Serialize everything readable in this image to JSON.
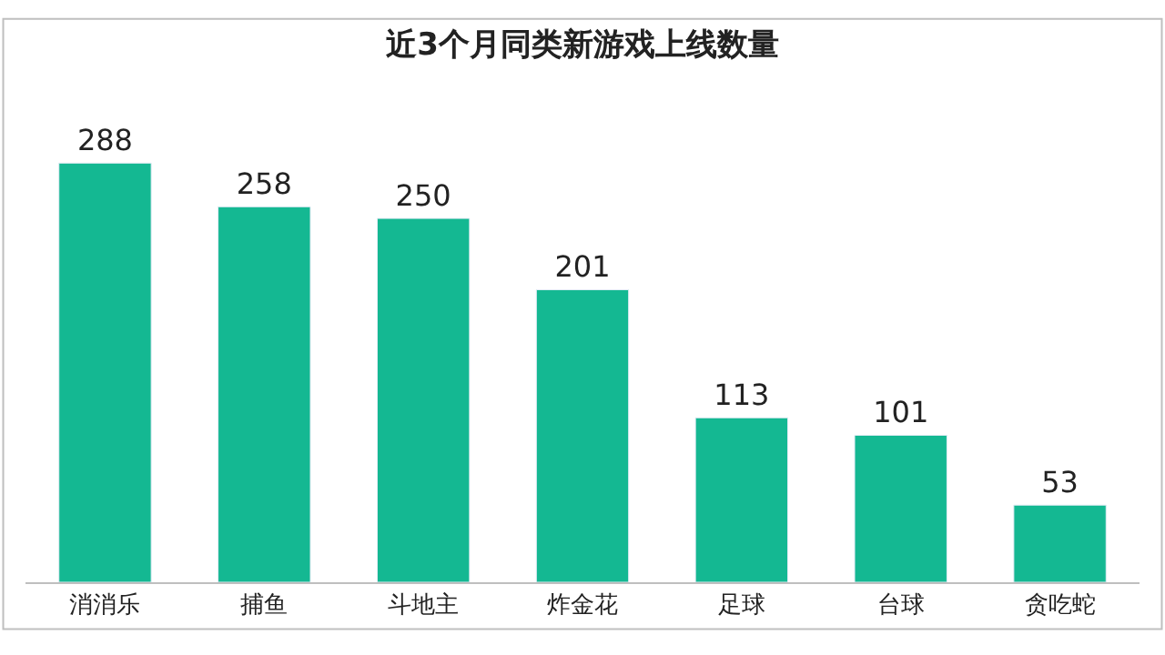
{
  "chart_data": {
    "type": "bar",
    "title": "近3个月同类新游戏上线数量",
    "categories": [
      "消消乐",
      "捕鱼",
      "斗地主",
      "炸金花",
      "足球",
      "台球",
      "贪吃蛇"
    ],
    "values": [
      288,
      258,
      250,
      201,
      113,
      101,
      53
    ],
    "color": "#14b892",
    "data_labels": true
  }
}
